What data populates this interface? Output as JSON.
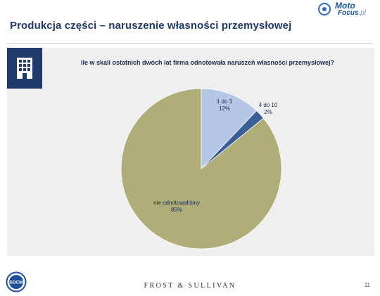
{
  "header": {
    "title": "Produkcja części – naruszenie własności przemysłowej",
    "logo_top": "Moto",
    "logo_bottom": "Focus",
    "logo_suffix": ".pl"
  },
  "chart_data": {
    "type": "pie",
    "title": "Ile w skali ostatnich dwóch lat firma odnotowała naruszeń własności przemysłowej?",
    "slices": [
      {
        "label": "1 do 3",
        "value_label": "12%",
        "value": 12,
        "color": "#b5c7e6"
      },
      {
        "label": "4 do 10",
        "value_label": "2%",
        "value": 2,
        "color": "#3a5f96"
      },
      {
        "label": "nie odnotowaliśmy",
        "value_label": "85%",
        "value": 85,
        "color": "#b0ae78"
      }
    ],
    "start_angle_deg": 0,
    "direction": "clockwise"
  },
  "footer": {
    "logo_text": "SDCM",
    "brand": "FROST & SULLIVAN",
    "page_number": "11"
  },
  "colors": {
    "title": "#1f3a6b",
    "icon_box": "#203b6b",
    "panel_bg": "#efefef"
  },
  "icons": {
    "header_icon": "building-icon"
  }
}
